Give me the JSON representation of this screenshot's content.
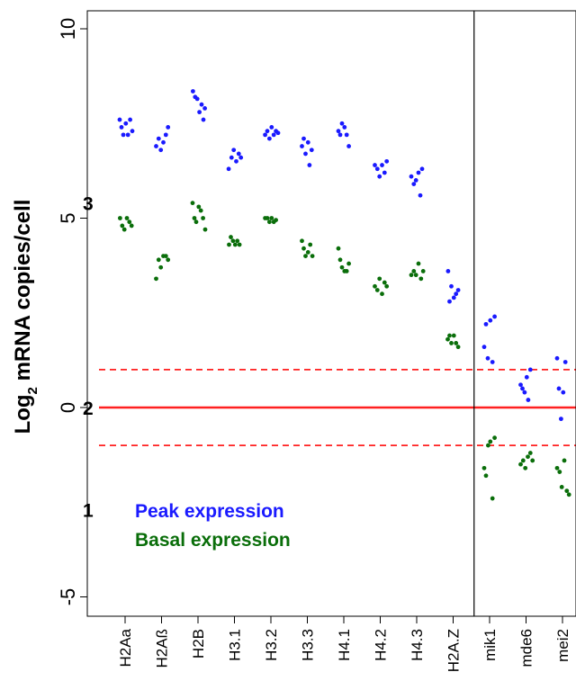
{
  "chart_data": {
    "type": "scatter",
    "ylabel_main": "Log",
    "ylabel_sub": "2",
    "ylabel_rest": " mRNA copies/cell",
    "ylim": [
      -6.2,
      10.5
    ],
    "yticks": [
      -5,
      0,
      5,
      10
    ],
    "ytick_labels": [
      "-5",
      "0",
      "5",
      "10"
    ],
    "categories": [
      "H2Aa",
      "H2Aß",
      "H2B",
      "H3.1",
      "H3.2",
      "H3.3",
      "H4.1",
      "H4.2",
      "H4.3",
      "H2A.Z",
      "mik1",
      "mde6",
      "mei2"
    ],
    "divider_after_index": 9,
    "reference_lines": [
      {
        "y": 0,
        "style": "solid",
        "color": "#ff2020"
      },
      {
        "y": 1,
        "style": "dashed",
        "color": "#ff2020"
      },
      {
        "y": -1,
        "style": "dashed",
        "color": "#ff2020"
      }
    ],
    "region_labels": [
      {
        "text": "3",
        "y": 5.4
      },
      {
        "text": "2",
        "y": 0
      },
      {
        "text": "1",
        "y": -2.7
      }
    ],
    "series": [
      {
        "name": "Peak expression",
        "color": "#1a1aff",
        "points": [
          [
            [
              -0.15,
              7.6
            ],
            [
              -0.1,
              7.4
            ],
            [
              -0.05,
              7.2
            ],
            [
              0.02,
              7.5
            ],
            [
              0.08,
              7.2
            ],
            [
              0.14,
              7.6
            ],
            [
              0.2,
              7.3
            ]
          ],
          [
            [
              -0.15,
              6.9
            ],
            [
              -0.08,
              7.1
            ],
            [
              -0.02,
              6.8
            ],
            [
              0.05,
              7.0
            ],
            [
              0.12,
              7.2
            ],
            [
              0.18,
              7.4
            ]
          ],
          [
            [
              -0.14,
              8.35
            ],
            [
              -0.08,
              8.2
            ],
            [
              -0.02,
              8.15
            ],
            [
              0.04,
              7.8
            ],
            [
              0.1,
              8.0
            ],
            [
              0.15,
              7.6
            ],
            [
              0.19,
              7.9
            ]
          ],
          [
            [
              -0.16,
              6.3
            ],
            [
              -0.08,
              6.6
            ],
            [
              -0.02,
              6.8
            ],
            [
              0.05,
              6.5
            ],
            [
              0.12,
              6.7
            ],
            [
              0.18,
              6.6
            ]
          ],
          [
            [
              -0.16,
              7.2
            ],
            [
              -0.1,
              7.3
            ],
            [
              -0.04,
              7.1
            ],
            [
              0.02,
              7.4
            ],
            [
              0.08,
              7.2
            ],
            [
              0.14,
              7.3
            ],
            [
              0.2,
              7.25
            ]
          ],
          [
            [
              -0.15,
              6.9
            ],
            [
              -0.1,
              7.1
            ],
            [
              -0.05,
              6.7
            ],
            [
              0.02,
              7.0
            ],
            [
              0.06,
              6.4
            ],
            [
              0.12,
              6.8
            ]
          ],
          [
            [
              -0.15,
              7.3
            ],
            [
              -0.1,
              7.2
            ],
            [
              -0.05,
              7.5
            ],
            [
              0.02,
              7.4
            ],
            [
              0.08,
              7.2
            ],
            [
              0.14,
              6.9
            ]
          ],
          [
            [
              -0.15,
              6.4
            ],
            [
              -0.08,
              6.3
            ],
            [
              -0.02,
              6.1
            ],
            [
              0.05,
              6.4
            ],
            [
              0.12,
              6.2
            ],
            [
              0.18,
              6.5
            ]
          ],
          [
            [
              -0.15,
              6.1
            ],
            [
              -0.08,
              5.9
            ],
            [
              -0.02,
              6.0
            ],
            [
              0.05,
              6.2
            ],
            [
              0.1,
              5.6
            ],
            [
              0.15,
              6.3
            ]
          ],
          [
            [
              -0.14,
              3.6
            ],
            [
              -0.1,
              2.8
            ],
            [
              -0.05,
              3.2
            ],
            [
              0.02,
              2.9
            ],
            [
              0.08,
              3.0
            ],
            [
              0.14,
              3.1
            ]
          ],
          [
            [
              -0.15,
              1.6
            ],
            [
              -0.1,
              2.2
            ],
            [
              -0.05,
              1.3
            ],
            [
              0.02,
              2.3
            ],
            [
              0.08,
              1.2
            ],
            [
              0.14,
              2.4
            ]
          ],
          [
            [
              -0.15,
              0.6
            ],
            [
              -0.1,
              0.5
            ],
            [
              -0.04,
              0.4
            ],
            [
              0.02,
              0.8
            ],
            [
              0.06,
              0.2
            ],
            [
              0.12,
              1.0
            ]
          ],
          [
            [
              -0.15,
              1.3
            ],
            [
              -0.1,
              0.5
            ],
            [
              -0.04,
              -0.3
            ],
            [
              0.02,
              0.4
            ],
            [
              0.08,
              1.2
            ]
          ]
        ]
      },
      {
        "name": "Basal expression",
        "color": "#0a6e0a",
        "points": [
          [
            [
              -0.14,
              5.0
            ],
            [
              -0.08,
              4.8
            ],
            [
              -0.02,
              4.7
            ],
            [
              0.05,
              5.0
            ],
            [
              0.12,
              4.9
            ],
            [
              0.18,
              4.8
            ]
          ],
          [
            [
              -0.15,
              3.4
            ],
            [
              -0.08,
              3.9
            ],
            [
              -0.02,
              3.7
            ],
            [
              0.05,
              4.0
            ],
            [
              0.12,
              4.0
            ],
            [
              0.18,
              3.9
            ]
          ],
          [
            [
              -0.15,
              5.4
            ],
            [
              -0.1,
              5.0
            ],
            [
              -0.05,
              4.9
            ],
            [
              0.02,
              5.3
            ],
            [
              0.08,
              5.2
            ],
            [
              0.14,
              5.0
            ],
            [
              0.2,
              4.7
            ]
          ],
          [
            [
              -0.15,
              4.3
            ],
            [
              -0.1,
              4.5
            ],
            [
              -0.04,
              4.4
            ],
            [
              0.02,
              4.3
            ],
            [
              0.08,
              4.4
            ],
            [
              0.14,
              4.3
            ]
          ],
          [
            [
              -0.16,
              5.0
            ],
            [
              -0.1,
              5.0
            ],
            [
              -0.04,
              4.9
            ],
            [
              0.02,
              5.0
            ],
            [
              0.08,
              4.9
            ],
            [
              0.14,
              4.95
            ]
          ],
          [
            [
              -0.15,
              4.4
            ],
            [
              -0.1,
              4.2
            ],
            [
              -0.05,
              4.0
            ],
            [
              0.02,
              4.1
            ],
            [
              0.08,
              4.3
            ],
            [
              0.14,
              4.0
            ]
          ],
          [
            [
              -0.15,
              4.2
            ],
            [
              -0.1,
              3.9
            ],
            [
              -0.05,
              3.7
            ],
            [
              0.02,
              3.6
            ],
            [
              0.08,
              3.6
            ],
            [
              0.14,
              3.8
            ]
          ],
          [
            [
              -0.15,
              3.2
            ],
            [
              -0.08,
              3.1
            ],
            [
              -0.02,
              3.4
            ],
            [
              0.05,
              3.0
            ],
            [
              0.12,
              3.3
            ],
            [
              0.18,
              3.2
            ]
          ],
          [
            [
              -0.15,
              3.5
            ],
            [
              -0.08,
              3.6
            ],
            [
              -0.02,
              3.5
            ],
            [
              0.05,
              3.8
            ],
            [
              0.12,
              3.4
            ],
            [
              0.18,
              3.6
            ]
          ],
          [
            [
              -0.15,
              1.8
            ],
            [
              -0.1,
              1.9
            ],
            [
              -0.05,
              1.7
            ],
            [
              0.02,
              1.9
            ],
            [
              0.08,
              1.7
            ],
            [
              0.14,
              1.6
            ]
          ],
          [
            [
              -0.15,
              -1.6
            ],
            [
              -0.1,
              -1.8
            ],
            [
              -0.04,
              -1.0
            ],
            [
              0.02,
              -0.9
            ],
            [
              0.08,
              -2.4
            ],
            [
              0.14,
              -0.8
            ]
          ],
          [
            [
              -0.15,
              -1.5
            ],
            [
              -0.08,
              -1.4
            ],
            [
              -0.02,
              -1.6
            ],
            [
              0.05,
              -1.3
            ],
            [
              0.12,
              -1.2
            ],
            [
              0.18,
              -1.4
            ]
          ],
          [
            [
              -0.15,
              -1.6
            ],
            [
              -0.08,
              -1.7
            ],
            [
              -0.02,
              -2.1
            ],
            [
              0.05,
              -1.4
            ],
            [
              0.12,
              -2.2
            ],
            [
              0.18,
              -2.3
            ]
          ]
        ]
      }
    ],
    "legend": {
      "placement": "bottom-left",
      "entries": [
        {
          "label": "Peak expression",
          "color": "#1a1aff"
        },
        {
          "label": "Basal expression",
          "color": "#0a6e0a"
        }
      ]
    }
  }
}
